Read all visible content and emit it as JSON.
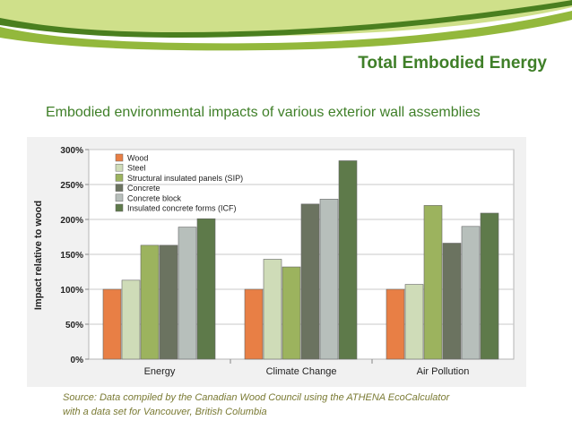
{
  "slide": {
    "title": "Total Embodied Energy",
    "subtitle": "Embodied environmental impacts of various exterior wall assemblies",
    "source_line1": "Source: Data compiled by the Canadian Wood Council using the ATHENA EcoCalculator",
    "source_line2": "with a data set for Vancouver, British Columbia"
  },
  "colors": {
    "title_green": "#3f7f28",
    "banner_light": "#cfe08a",
    "banner_mid": "#93b83c",
    "banner_dark": "#4a7f1f"
  },
  "chart_data": {
    "type": "bar",
    "title": "",
    "xlabel": "",
    "ylabel": "Impact relative to wood",
    "ylim": [
      0,
      300
    ],
    "yticks": [
      0,
      50,
      100,
      150,
      200,
      250,
      300
    ],
    "ytick_labels": [
      "0%",
      "50%",
      "100%",
      "150%",
      "200%",
      "250%",
      "300%"
    ],
    "grid": true,
    "legend_position": "top-left",
    "categories": [
      "Energy",
      "Climate Change",
      "Air Pollution"
    ],
    "series": [
      {
        "name": "Wood",
        "color": "#e87f45",
        "values": [
          100,
          100,
          100
        ]
      },
      {
        "name": "Steel",
        "color": "#cfdcb8",
        "values": [
          113,
          143,
          107
        ]
      },
      {
        "name": "Structural insulated panels (SIP)",
        "color": "#9cb35e",
        "values": [
          163,
          132,
          220
        ]
      },
      {
        "name": "Concrete",
        "color": "#6b7360",
        "values": [
          163,
          222,
          166
        ]
      },
      {
        "name": "Concrete block",
        "color": "#b7bfbb",
        "values": [
          189,
          229,
          190
        ]
      },
      {
        "name": "Insulated concrete forms (ICF)",
        "color": "#5e7a4a",
        "values": [
          201,
          284,
          209
        ]
      }
    ]
  }
}
